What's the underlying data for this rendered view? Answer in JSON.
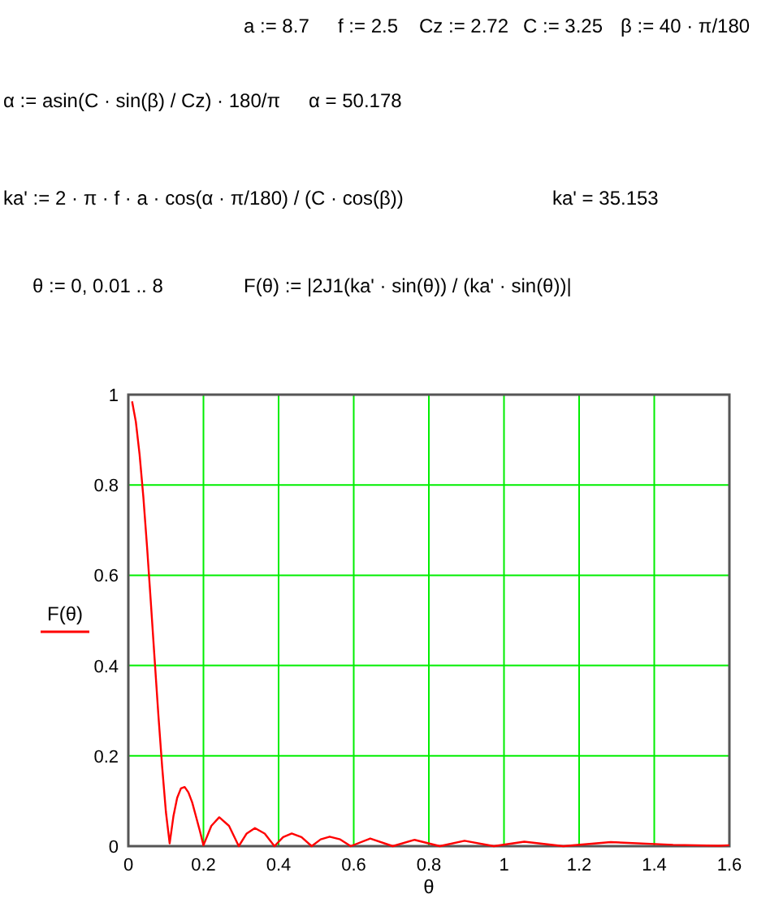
{
  "chart_data": {
    "type": "line",
    "xlabel": "θ",
    "annotations": [
      "a := 8.7",
      "f := 2.5",
      "Cz := 2.72",
      "C := 3.25",
      "β := 40 · π/180",
      "α := asin(C · sin(β) / Cz) · 180/π",
      "α = 50.178",
      "ka' := 2 · π · f · a · cos(α · π/180) / (C · cos(β))",
      "ka' = 35.153",
      "θ := 0, 0.01 .. 8",
      "F(θ) := |2J1(ka' · sin(θ)) / (ka' · sin(θ))|"
    ],
    "series": [
      {
        "name": "F(θ)",
        "color": "#ff0000",
        "x": [
          0.01,
          0.02,
          0.03,
          0.04,
          0.05,
          0.06,
          0.07,
          0.08,
          0.09,
          0.1,
          0.11,
          0.12,
          0.13,
          0.14,
          0.15,
          0.16,
          0.17,
          0.18,
          0.19,
          0.2,
          0.221,
          0.242,
          0.268,
          0.294,
          0.315,
          0.337,
          0.363,
          0.389,
          0.412,
          0.435,
          0.461,
          0.488,
          0.512,
          0.536,
          0.564,
          0.592,
          0.644,
          0.704,
          0.762,
          0.829,
          0.895,
          0.973,
          1.054,
          1.158,
          1.284,
          1.45,
          1.571,
          1.6
        ],
        "values": [
          0.985,
          0.94,
          0.867,
          0.773,
          0.661,
          0.539,
          0.414,
          0.29,
          0.176,
          0.076,
          0.006,
          0.066,
          0.107,
          0.128,
          0.131,
          0.119,
          0.097,
          0.066,
          0.035,
          0.002,
          0.045,
          0.064,
          0.045,
          0,
          0.028,
          0.04,
          0.028,
          0,
          0.02,
          0.028,
          0.02,
          0,
          0.015,
          0.021,
          0.015,
          0,
          0.017,
          0,
          0.014,
          0,
          0.012,
          0,
          0.01,
          0,
          0.009,
          0.003,
          0.001,
          0.002
        ]
      }
    ],
    "xlim": [
      0,
      1.6
    ],
    "xticks": [
      0,
      0.2,
      0.4,
      0.6,
      0.8,
      1,
      1.2,
      1.4,
      1.6
    ],
    "ylim": [
      0,
      1
    ],
    "yticks": [
      0,
      0.2,
      0.4,
      0.6,
      0.8,
      1
    ],
    "grid": true,
    "legend": "left",
    "marker": "none",
    "line_style": "solid"
  }
}
